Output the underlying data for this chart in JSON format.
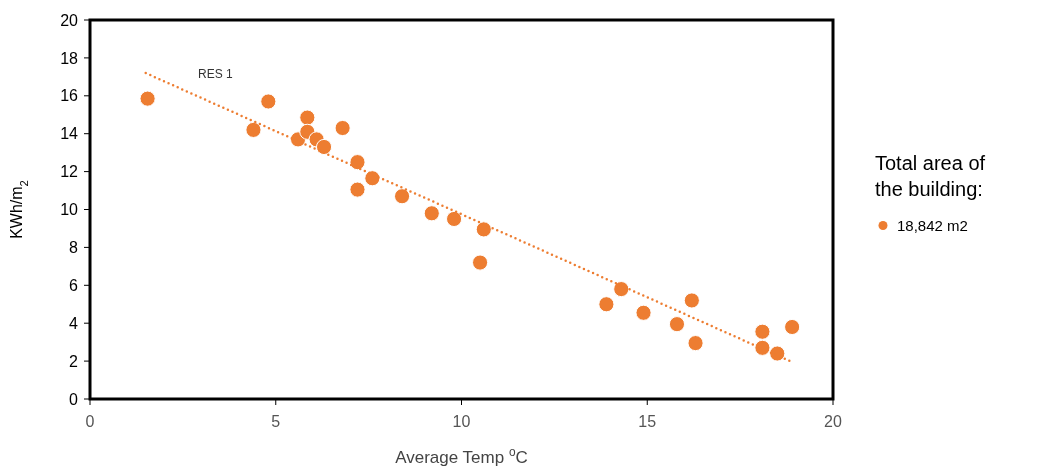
{
  "chart_data": {
    "type": "scatter",
    "xlabel": "Average Temp $^{o}$C",
    "ylabel": "KWh/m$_{2}$",
    "legend_title": "Total area of the building:",
    "legend": "right",
    "grid": false,
    "marker": "circle",
    "xlim": [
      0,
      20
    ],
    "xticks": [
      0,
      5,
      10,
      15,
      20
    ],
    "ylim": [
      0,
      20
    ],
    "yticks": [
      0,
      2,
      4,
      6,
      8,
      10,
      12,
      14,
      16,
      18,
      20
    ],
    "annotations": [
      "RES 1"
    ],
    "series": [
      {
        "name": "18,842 m2",
        "color": "#ed7d31",
        "x": [
          1.55,
          4.4,
          4.8,
          5.6,
          5.85,
          5.85,
          6.1,
          6.3,
          6.8,
          7.2,
          7.2,
          7.6,
          8.4,
          9.2,
          9.8,
          10.6,
          10.5,
          13.9,
          14.3,
          14.9,
          15.8,
          16.2,
          16.3,
          18.1,
          18.1,
          18.5,
          18.9
        ],
        "values": [
          15.85,
          14.2,
          15.7,
          13.7,
          14.85,
          14.1,
          13.7,
          13.3,
          14.3,
          12.5,
          11.05,
          11.65,
          10.7,
          9.8,
          9.5,
          8.95,
          7.2,
          5.0,
          5.8,
          4.55,
          3.95,
          5.2,
          2.95,
          3.55,
          2.7,
          2.4,
          3.8
        ]
      },
      {
        "type": "line",
        "marker": "none",
        "line_style": "dotted",
        "color": "#ed7d31",
        "x": [
          1.5,
          18.9
        ],
        "values": [
          17.2,
          1.95
        ]
      }
    ]
  }
}
